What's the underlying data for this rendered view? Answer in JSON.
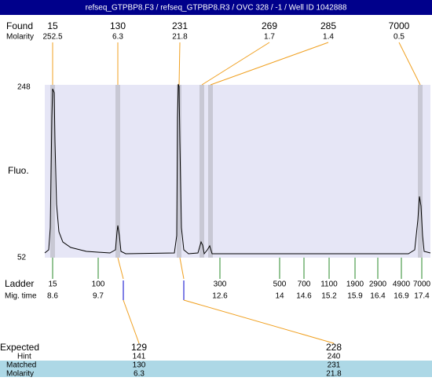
{
  "header": {
    "title": "refseq_GTPBP8.F3 / refseq_GTPBP8.R3 / OVC 328 / -1 / Well ID 1042888"
  },
  "found": {
    "label": "Found",
    "molarity_label": "Molarity",
    "peaks": [
      {
        "size": "15",
        "molarity": "252.5"
      },
      {
        "size": "130",
        "molarity": "6.3"
      },
      {
        "size": "231",
        "molarity": "21.8"
      },
      {
        "size": "269",
        "molarity": "1.7"
      },
      {
        "size": "285",
        "molarity": "1.4"
      },
      {
        "size": "7000",
        "molarity": "0.5"
      }
    ]
  },
  "plot": {
    "y_label": "Fluo.",
    "y_max": "248",
    "y_min": "52"
  },
  "ladder": {
    "label": "Ladder",
    "mig_label": "Mig. time",
    "markers": [
      {
        "size": "15",
        "time": "8.6"
      },
      {
        "size": "100",
        "time": "9.7"
      },
      {
        "size": "300",
        "time": "12.6"
      },
      {
        "size": "500",
        "time": "14"
      },
      {
        "size": "700",
        "time": "14.6"
      },
      {
        "size": "1100",
        "time": "15.2"
      },
      {
        "size": "1900",
        "time": "15.9"
      },
      {
        "size": "2900",
        "time": "16.4"
      },
      {
        "size": "4900",
        "time": "16.9"
      },
      {
        "size": "7000",
        "time": "17.4"
      }
    ]
  },
  "expected": {
    "label": "Expected",
    "hint_label": "Hint",
    "matched_label": "Matched",
    "molarity_label": "Molarity",
    "columns": [
      {
        "expected": "129",
        "hint": "141",
        "matched": "130",
        "molarity": "6.3"
      },
      {
        "expected": "228",
        "hint": "240",
        "matched": "231",
        "molarity": "21.8"
      }
    ]
  }
}
